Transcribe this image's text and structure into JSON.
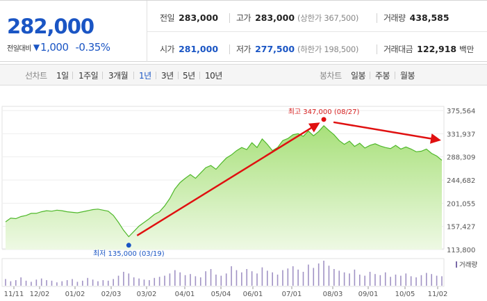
{
  "quote": {
    "price": "282,000",
    "change_label": "전일대비",
    "change_amount": "1,000",
    "change_pct": "-0.35%",
    "prev_close_label": "전일",
    "prev_close": "283,000",
    "high_label": "고가",
    "high": "283,000",
    "upper_limit": "(상한가 367,500)",
    "volume_label": "거래량",
    "volume": "438,585",
    "open_label": "시가",
    "open": "281,000",
    "low_label": "저가",
    "low": "277,500",
    "lower_limit": "(하한가 198,500)",
    "turnover_label": "거래대금",
    "turnover": "122,918",
    "turnover_unit": "백만"
  },
  "tabs": {
    "line_group": "선차트",
    "line": [
      "1일",
      "1주일",
      "3개월",
      "1년",
      "3년",
      "5년",
      "10년"
    ],
    "selected": "1년",
    "candle_group": "봉차트",
    "candle": [
      "일봉",
      "주봉",
      "월봉"
    ]
  },
  "colors": {
    "accent": "#1a55c4",
    "up": "#d62020",
    "area_top": "#a8e07a",
    "line": "#4fb82a"
  },
  "chart_data": {
    "type": "area",
    "y_ticks": [
      "375,564",
      "331,937",
      "288,309",
      "244,682",
      "201,055",
      "157,427",
      "113,800"
    ],
    "ylim": [
      113800,
      375564
    ],
    "x_ticks": [
      "11/11",
      "12/02",
      "01/02",
      "02/03",
      "03/02",
      "04/01",
      "05/04",
      "06/01",
      "07/01",
      "08/03",
      "09/01",
      "10/05",
      "11/02"
    ],
    "series": [
      {
        "values": [
          166000,
          173000,
          172000,
          176000,
          178000,
          182000,
          182000,
          185000,
          187000,
          186000,
          188000,
          187000,
          185000,
          184000,
          183000,
          185000,
          187000,
          189000,
          190000,
          188000,
          186000,
          178000,
          165000,
          150000,
          138000,
          148000,
          158000,
          165000,
          172000,
          180000,
          185000,
          196000,
          210000,
          228000,
          240000,
          248000,
          255000,
          248000,
          258000,
          268000,
          272000,
          265000,
          276000,
          286000,
          292000,
          300000,
          306000,
          302000,
          315000,
          306000,
          322000,
          312000,
          300000,
          306000,
          319000,
          323000,
          330000,
          332000,
          327000,
          337000,
          328000,
          336000,
          347000,
          338000,
          330000,
          319000,
          312000,
          318000,
          308000,
          314000,
          305000,
          310000,
          313000,
          309000,
          306000,
          304000,
          310000,
          303000,
          307000,
          303000,
          298000,
          299000,
          303000,
          295000,
          290000,
          282000
        ]
      }
    ],
    "high": {
      "label": "최고 347,000 (08/27)",
      "value": 347000,
      "index": 62
    },
    "low": {
      "label": "최저 135,000 (03/19)",
      "value": 135000,
      "index": 24
    },
    "volume_label": "거래량",
    "volume": [
      12,
      8,
      10,
      15,
      9,
      7,
      11,
      13,
      10,
      9,
      6,
      8,
      10,
      12,
      7,
      9,
      14,
      11,
      8,
      10,
      9,
      12,
      18,
      25,
      22,
      15,
      13,
      11,
      10,
      14,
      16,
      18,
      22,
      28,
      24,
      19,
      21,
      17,
      15,
      26,
      30,
      20,
      18,
      22,
      35,
      28,
      24,
      30,
      26,
      22,
      33,
      27,
      24,
      20,
      28,
      31,
      35,
      29,
      25,
      38,
      32,
      40,
      45,
      36,
      30,
      27,
      24,
      22,
      29,
      20,
      18,
      25,
      21,
      19,
      24,
      16,
      20,
      18,
      22,
      17,
      15,
      19,
      23,
      21,
      18,
      17
    ]
  }
}
